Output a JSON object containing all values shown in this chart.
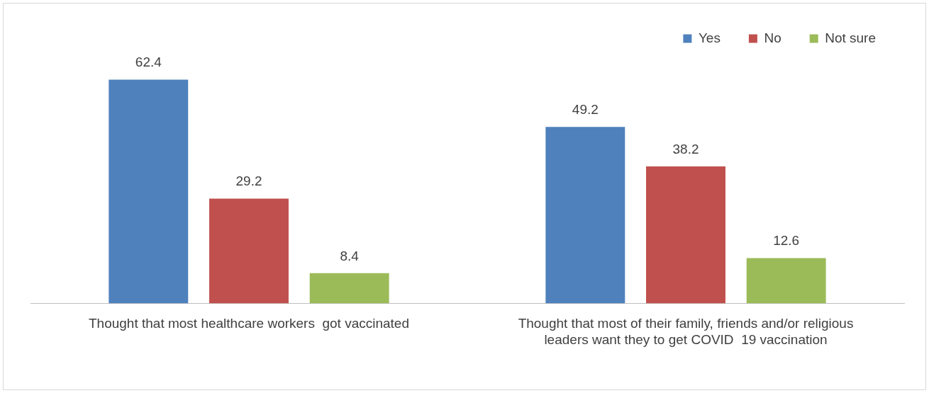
{
  "chart_data": {
    "type": "bar",
    "categories": [
      "Thought that most healthcare workers  got vaccinated",
      "Thought that most of their family, friends and/or religious leaders want they to get COVID  19 vaccination"
    ],
    "series": [
      {
        "name": "Yes",
        "color": "#4f81bd",
        "values": [
          62.4,
          49.2
        ]
      },
      {
        "name": "No",
        "color": "#c0504d",
        "values": [
          29.2,
          38.2
        ]
      },
      {
        "name": "Not sure",
        "color": "#9bbb59",
        "values": [
          8.4,
          12.6
        ]
      }
    ],
    "data_labels": true,
    "legend": "top right",
    "grid": false
  }
}
